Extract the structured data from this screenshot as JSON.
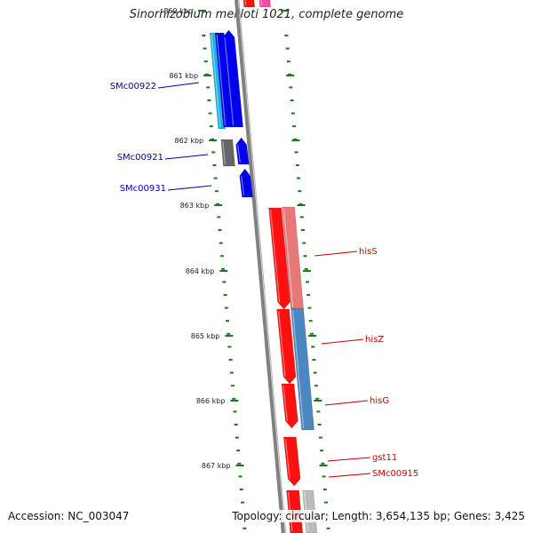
{
  "title": "Sinorhizobium meliloti 1021, complete genome",
  "footer": {
    "accession": "Accession: NC_003047",
    "topology": "Topology: circular; Length: 3,654,135 bp; Genes: 3,425"
  },
  "colors": {
    "axis": "#808080",
    "tick": "#1a7a1a",
    "blue_gene": "#0000ee",
    "cyan_gene": "#19b4e6",
    "grey_gene": "#666666",
    "red_gene": "#ff1010",
    "pink_gene": "#e87878",
    "steel_gene": "#4a86c0",
    "light_grey_gene": "#bbbbbb",
    "magenta_gene": "#ff44aa",
    "label_blue": "#0000aa",
    "label_red": "#cc0000"
  },
  "kbp_labels": [
    "860 kbp",
    "861 kbp",
    "862 kbp",
    "863 kbp",
    "864 kbp",
    "865 kbp",
    "866 kbp",
    "867 kbp"
  ],
  "gene_labels": {
    "left": [
      "SMc00922",
      "SMc00921",
      "SMc00931"
    ],
    "right": [
      "hisS",
      "hisZ",
      "hisG",
      "gst11",
      "SMc00915"
    ]
  }
}
